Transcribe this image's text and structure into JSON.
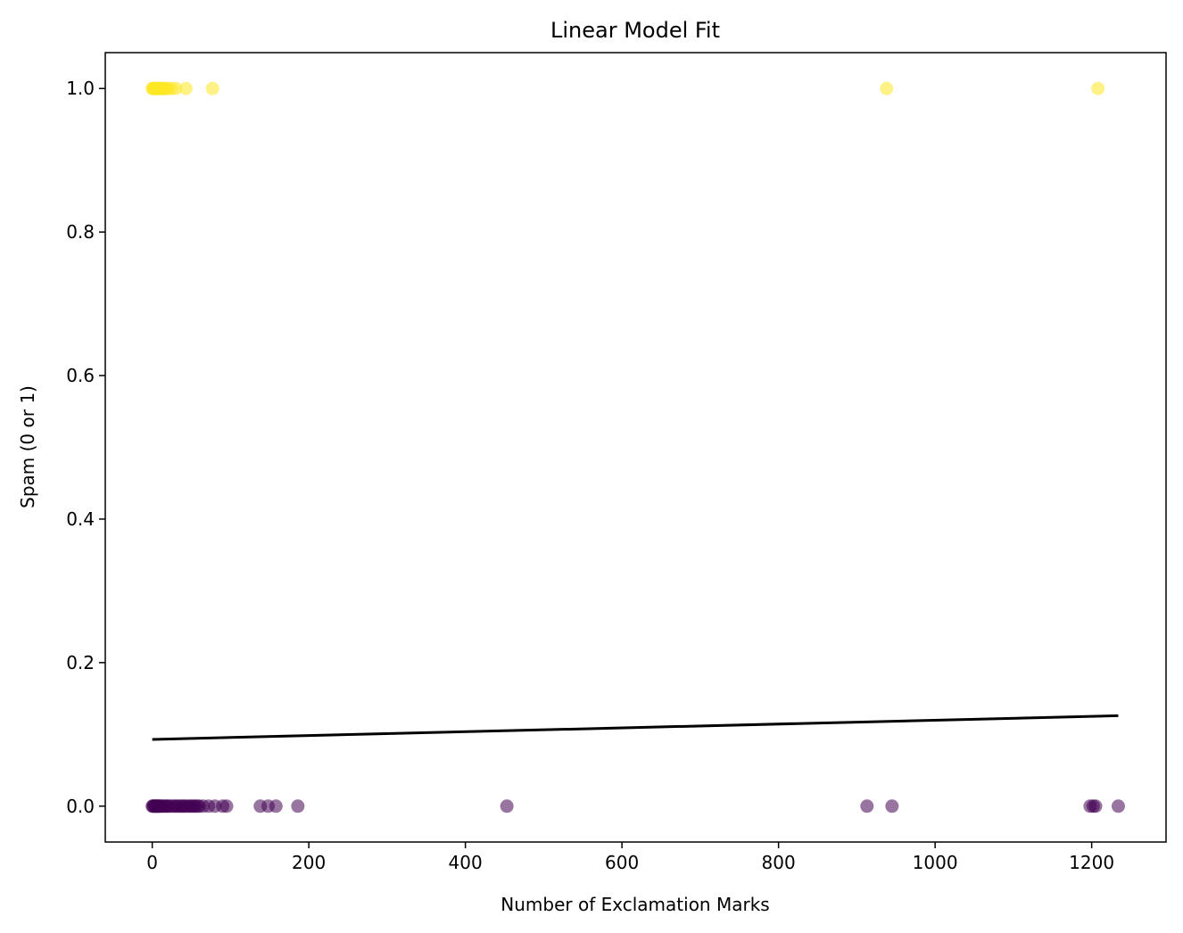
{
  "chart_data": {
    "type": "scatter",
    "title": "Linear Model Fit",
    "xlabel": "Number of Exclamation Marks",
    "ylabel": "Spam (0 or 1)",
    "xlim": [
      -60,
      1295
    ],
    "ylim": [
      -0.05,
      1.05
    ],
    "xticks": [
      0,
      200,
      400,
      600,
      800,
      1000,
      1200
    ],
    "yticks": [
      0.0,
      0.2,
      0.4,
      0.6,
      0.8,
      1.0
    ],
    "xtick_labels": [
      "0",
      "200",
      "400",
      "600",
      "800",
      "1000",
      "1200"
    ],
    "ytick_labels": [
      "0.0",
      "0.2",
      "0.4",
      "0.6",
      "0.8",
      "1.0"
    ],
    "grid": false,
    "series": [
      {
        "class": 1,
        "color": "#fde725",
        "alpha": 0.55,
        "x": [
          0,
          1,
          2,
          3,
          4,
          5,
          6,
          7,
          8,
          9,
          10,
          11,
          12,
          14,
          16,
          18,
          20,
          25,
          30,
          43,
          77,
          938,
          1208
        ],
        "y": [
          1,
          1,
          1,
          1,
          1,
          1,
          1,
          1,
          1,
          1,
          1,
          1,
          1,
          1,
          1,
          1,
          1,
          1,
          1,
          1,
          1,
          1,
          1
        ]
      },
      {
        "class": 0,
        "color": "#440154",
        "alpha": 0.55,
        "x": [
          0,
          1,
          2,
          3,
          4,
          5,
          6,
          7,
          8,
          9,
          10,
          12,
          14,
          16,
          18,
          20,
          22,
          25,
          28,
          30,
          33,
          35,
          38,
          40,
          42,
          45,
          48,
          50,
          53,
          55,
          58,
          60,
          65,
          72,
          80,
          90,
          95,
          138,
          148,
          158,
          186,
          453,
          913,
          945,
          1198,
          1202,
          1205,
          1234
        ],
        "y": [
          0,
          0,
          0,
          0,
          0,
          0,
          0,
          0,
          0,
          0,
          0,
          0,
          0,
          0,
          0,
          0,
          0,
          0,
          0,
          0,
          0,
          0,
          0,
          0,
          0,
          0,
          0,
          0,
          0,
          0,
          0,
          0,
          0,
          0,
          0,
          0,
          0,
          0,
          0,
          0,
          0,
          0,
          0,
          0,
          0,
          0,
          0,
          0
        ]
      }
    ],
    "fit_line": {
      "color": "#000000",
      "x": [
        0,
        1234
      ],
      "y": [
        0.093,
        0.126
      ]
    }
  }
}
